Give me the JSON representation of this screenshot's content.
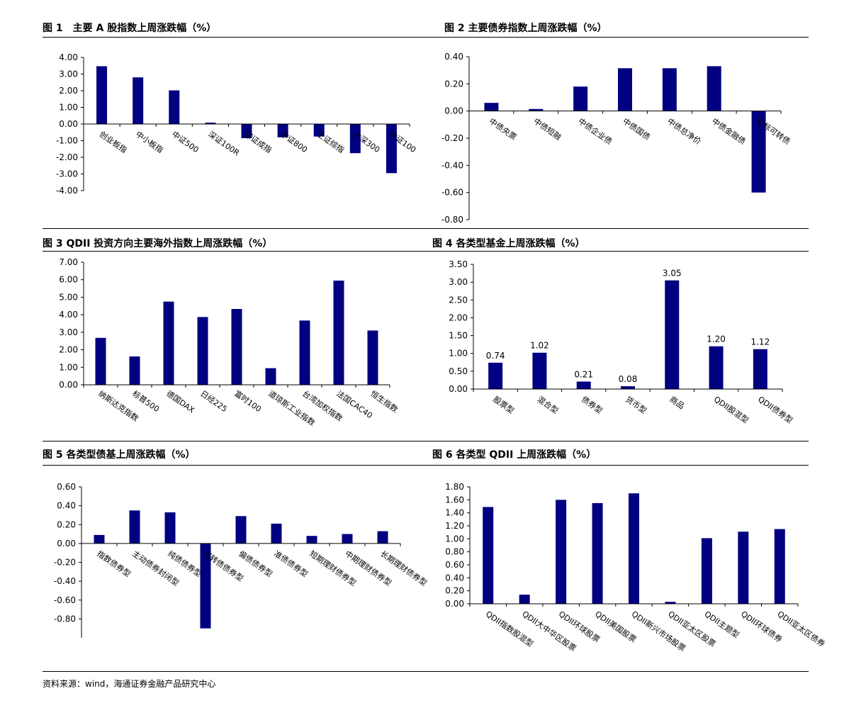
{
  "footer": "资料来源：wind，海通证券金融产品研究中心",
  "chart_data": [
    {
      "type": "bar",
      "title": "图 1　主要 A 股指数上周涨跌幅（%）",
      "categories": [
        "创业板指",
        "中小板指",
        "中证500",
        "深证100R",
        "深证成指",
        "中证800",
        "上证综指",
        "沪深300",
        "中证100"
      ],
      "values": [
        3.47,
        2.8,
        2.02,
        0.08,
        -0.85,
        -0.8,
        -0.75,
        -1.75,
        -2.95
      ],
      "ylim": [
        -4,
        4
      ],
      "yticks": [
        4,
        3,
        2,
        1,
        0,
        -1,
        -2,
        -3,
        -4
      ],
      "tick_decimals": 2,
      "color": "#000080",
      "grid": false,
      "legend": "none"
    },
    {
      "type": "bar",
      "title": "图 2  主要债券指数上周涨跌幅（%）",
      "categories": [
        "中债央票",
        "中债短融",
        "中债企业债",
        "中债国债",
        "中债总净价",
        "中债金融债",
        "中标可转债"
      ],
      "values": [
        0.06,
        0.015,
        0.18,
        0.315,
        0.315,
        0.33,
        -0.6
      ],
      "ylim": [
        -0.8,
        0.4
      ],
      "yticks": [
        0.4,
        0.2,
        0,
        -0.2,
        -0.4,
        -0.6,
        -0.8
      ],
      "tick_decimals": 2,
      "color": "#000080",
      "grid": false,
      "legend": "none"
    },
    {
      "type": "bar",
      "title": "图 3 QDII 投资方向主要海外指数上周涨跌幅（%）",
      "categories": [
        "纳斯达克指数",
        "标普500",
        "德国DAX",
        "日经225",
        "富时100",
        "道琼斯工业指数",
        "台湾加权指数",
        "法国CAC40",
        "恒生指数"
      ],
      "values": [
        2.68,
        1.62,
        4.75,
        3.87,
        4.33,
        0.95,
        3.67,
        5.95,
        3.1
      ],
      "ylim": [
        0,
        7
      ],
      "yticks": [
        7,
        6,
        5,
        4,
        3,
        2,
        1,
        0
      ],
      "tick_decimals": 2,
      "color": "#000080",
      "grid": false,
      "legend": "none"
    },
    {
      "type": "bar",
      "title": "图 4 各类型基金上周涨跌幅（%）",
      "categories": [
        "股票型",
        "混合型",
        "债券型",
        "货币型",
        "商品",
        "QDII股混型",
        "QDII债券型"
      ],
      "values": [
        0.74,
        1.02,
        0.21,
        0.08,
        3.05,
        1.2,
        1.12
      ],
      "data_labels": [
        "0.74",
        "1.02",
        "0.21",
        "0.08",
        "3.05",
        "1.20",
        "1.12"
      ],
      "ylim": [
        0,
        3.5
      ],
      "yticks": [
        3.5,
        3,
        2.5,
        2,
        1.5,
        1,
        0.5,
        0
      ],
      "tick_decimals": 2,
      "color": "#000080",
      "grid": false,
      "legend": "none"
    },
    {
      "type": "bar",
      "title": "图 5 各类型债基上周涨跌幅（%）",
      "categories": [
        "指数债券型",
        "主动债券封闭型",
        "纯债债券型",
        "可转债债券型",
        "偏债债券型",
        "准债债券型",
        "短期理财债券型",
        "中期理财债券型",
        "长期理财债券型"
      ],
      "values": [
        0.09,
        0.35,
        0.33,
        -0.9,
        0.29,
        0.21,
        0.08,
        0.1,
        0.13
      ],
      "ylim": [
        -1,
        0.6
      ],
      "yticks": [
        0.6,
        0.4,
        0.2,
        0,
        -0.2,
        -0.4,
        -0.6,
        -0.8
      ],
      "tick_decimals": 2,
      "color": "#000080",
      "grid": false,
      "legend": "none"
    },
    {
      "type": "bar",
      "title": "图 6 各类型 QDII 上周涨跌幅（%）",
      "categories": [
        "QDII指数股混型",
        "QDII大中华区股票",
        "QDII环球股票",
        "QDII美国股票",
        "QDII新兴市场股票",
        "QDII亚太区股票",
        "QDII主题型",
        "QDII环球债券",
        "QDII亚太区债券"
      ],
      "values": [
        1.49,
        0.14,
        1.6,
        1.55,
        1.7,
        0.03,
        1.01,
        1.11,
        1.15
      ],
      "ylim": [
        0,
        1.8
      ],
      "yticks": [
        1.8,
        1.6,
        1.4,
        1.2,
        1.0,
        0.8,
        0.6,
        0.4,
        0.2,
        0
      ],
      "tick_decimals": 2,
      "color": "#000080",
      "grid": false,
      "legend": "none"
    }
  ]
}
